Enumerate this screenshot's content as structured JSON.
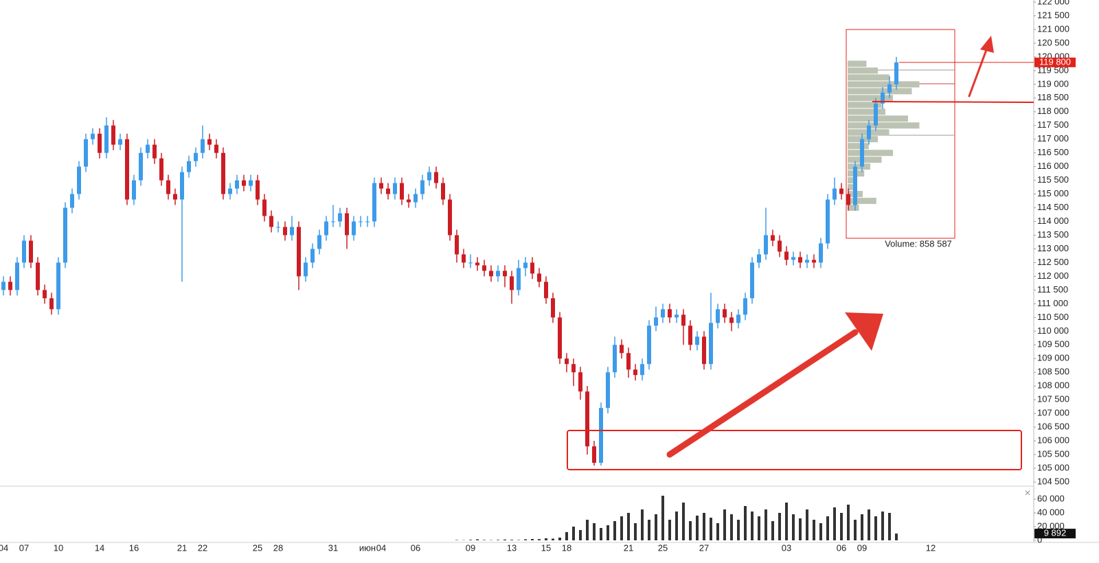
{
  "chart_data": {
    "type": "candlestick",
    "categories": [
      "04",
      null,
      null,
      "07",
      null,
      null,
      null,
      null,
      "10",
      null,
      null,
      null,
      null,
      null,
      "14",
      null,
      null,
      null,
      null,
      "16",
      null,
      null,
      null,
      null,
      null,
      null,
      "21",
      null,
      null,
      "22",
      null,
      null,
      null,
      null,
      null,
      null,
      null,
      "25",
      null,
      null,
      "28",
      null,
      null,
      null,
      null,
      null,
      null,
      null,
      "31",
      null,
      null,
      null,
      null,
      "июн",
      null,
      "04",
      null,
      null,
      null,
      null,
      "06",
      null,
      null,
      null,
      null,
      null,
      null,
      null,
      "09",
      null,
      null,
      null,
      null,
      null,
      "13",
      null,
      null,
      null,
      null,
      "15",
      null,
      null,
      "18",
      null,
      null,
      null,
      null,
      null,
      null,
      null,
      null,
      "21",
      null,
      null,
      null,
      null,
      "25",
      null,
      null,
      null,
      null,
      null,
      "27",
      null,
      null,
      null,
      null,
      null,
      null,
      null,
      null,
      null,
      null,
      null,
      "03",
      null,
      null,
      null,
      null,
      null,
      null,
      null,
      "06",
      null,
      null,
      "09",
      null,
      null,
      null,
      null,
      null,
      null,
      null,
      null,
      null,
      "12"
    ],
    "open": [
      111500,
      111800,
      111500,
      112500,
      113300,
      112500,
      111500,
      111200,
      110800,
      112500,
      114500,
      115000,
      116000,
      117000,
      117200,
      116500,
      117500,
      116800,
      117000,
      114800,
      115500,
      116500,
      116800,
      116300,
      115500,
      115000,
      114800,
      115800,
      116200,
      116500,
      117000,
      116800,
      116500,
      115000,
      115200,
      115500,
      115300,
      115500,
      114800,
      114200,
      113800,
      113800,
      113500,
      113800,
      112000,
      112500,
      113000,
      113500,
      114000,
      114000,
      114300,
      113500,
      114000,
      114000,
      114000,
      115400,
      115200,
      115000,
      115400,
      114800,
      114700,
      115000,
      115500,
      115800,
      115400,
      114800,
      113500,
      112800,
      112500,
      112500,
      112400,
      112200,
      112000,
      112200,
      112000,
      111500,
      112300,
      112500,
      112100,
      111800,
      111200,
      110500,
      109000,
      108800,
      108500,
      107800,
      105800,
      105200,
      107200,
      108500,
      109500,
      109200,
      108600,
      108400,
      108800,
      110200,
      110500,
      110800,
      110500,
      110600,
      110200,
      109500,
      109800,
      108800,
      110300,
      110800,
      110500,
      110300,
      110600,
      111200,
      112500,
      112800,
      113500,
      113300,
      112900,
      112600,
      112700,
      112500,
      112600,
      112500,
      113200,
      114800,
      115200,
      115000,
      114600,
      116000,
      117000,
      117500,
      118300,
      118700,
      119000,
      null,
      null,
      null,
      null,
      null
    ],
    "high": [
      112000,
      112000,
      112700,
      113500,
      113500,
      112700,
      111700,
      111400,
      112700,
      114700,
      115200,
      116200,
      117200,
      117400,
      117400,
      117800,
      117700,
      117200,
      117200,
      115700,
      116700,
      117000,
      117000,
      116500,
      115700,
      115200,
      116000,
      116400,
      116700,
      117500,
      117200,
      117000,
      116700,
      115400,
      115700,
      115700,
      115700,
      115700,
      115000,
      114400,
      114000,
      114000,
      114200,
      114000,
      112700,
      113200,
      113700,
      114200,
      114600,
      114500,
      114500,
      114200,
      114200,
      114200,
      115600,
      115600,
      115400,
      115600,
      115600,
      115000,
      115200,
      115700,
      116000,
      116000,
      115600,
      115000,
      113700,
      113000,
      112800,
      112700,
      112600,
      112400,
      112400,
      112400,
      112200,
      112600,
      112700,
      112700,
      112300,
      112000,
      111400,
      110700,
      109200,
      109000,
      108700,
      108000,
      106000,
      107400,
      108700,
      109800,
      109700,
      109400,
      108800,
      109000,
      110400,
      110900,
      111000,
      111000,
      110800,
      110800,
      110400,
      110000,
      110000,
      111400,
      111000,
      111000,
      110700,
      110800,
      111400,
      112700,
      113000,
      114500,
      113700,
      113500,
      113100,
      112900,
      112900,
      112800,
      112800,
      113400,
      115000,
      115600,
      115400,
      115200,
      116200,
      117200,
      117700,
      118500,
      118900,
      119300,
      120000,
      null,
      null,
      null,
      null,
      null
    ],
    "low": [
      111300,
      111300,
      111300,
      112300,
      112300,
      111300,
      111000,
      110600,
      110600,
      112300,
      114300,
      114800,
      115800,
      116800,
      116300,
      116300,
      116600,
      116600,
      114600,
      114600,
      115300,
      116300,
      116100,
      115300,
      114800,
      114600,
      111800,
      115600,
      116000,
      116300,
      116600,
      116300,
      114800,
      114800,
      115000,
      115100,
      115100,
      114600,
      114000,
      113600,
      113600,
      113300,
      113300,
      111500,
      111800,
      112300,
      112800,
      113300,
      113800,
      113800,
      113000,
      113300,
      113800,
      113800,
      113800,
      115000,
      114800,
      114800,
      114600,
      114500,
      114500,
      114800,
      115300,
      115200,
      114600,
      113300,
      112500,
      112300,
      112300,
      112200,
      112000,
      111800,
      111800,
      111600,
      111000,
      111300,
      112000,
      111900,
      111600,
      111000,
      110300,
      108800,
      108500,
      108000,
      107500,
      105500,
      105100,
      105100,
      107000,
      108300,
      109000,
      108300,
      108200,
      108200,
      108600,
      110000,
      110300,
      110300,
      110300,
      109500,
      109300,
      109300,
      108600,
      108600,
      110100,
      110300,
      110000,
      110100,
      110400,
      111000,
      112300,
      112600,
      113100,
      112700,
      112400,
      112400,
      112300,
      112300,
      112300,
      112300,
      113000,
      114600,
      114800,
      114400,
      114400,
      115800,
      116800,
      117300,
      118100,
      118500,
      118800,
      null,
      null,
      null,
      null,
      null
    ],
    "close": [
      111800,
      111500,
      112500,
      113300,
      112500,
      111500,
      111200,
      110800,
      112500,
      114500,
      115000,
      116000,
      117000,
      117200,
      116500,
      117500,
      116800,
      117000,
      114800,
      115500,
      116500,
      116800,
      116300,
      115500,
      115000,
      114800,
      115800,
      116200,
      116500,
      117000,
      116800,
      116500,
      115000,
      115200,
      115500,
      115300,
      115500,
      114800,
      114200,
      113800,
      113800,
      113500,
      113800,
      112000,
      112500,
      113000,
      113500,
      114000,
      114000,
      114300,
      113500,
      114000,
      114000,
      114000,
      115400,
      115200,
      115000,
      115400,
      114800,
      114700,
      115000,
      115500,
      115800,
      115400,
      114800,
      113500,
      112800,
      112500,
      112500,
      112400,
      112200,
      112000,
      112200,
      112000,
      111500,
      112300,
      112500,
      112100,
      111800,
      111200,
      110500,
      109000,
      108800,
      108500,
      107800,
      105800,
      105200,
      107200,
      108500,
      109500,
      109200,
      108600,
      108400,
      108800,
      110200,
      110500,
      110800,
      110500,
      110600,
      110200,
      109500,
      109800,
      108800,
      110300,
      110800,
      110500,
      110300,
      110600,
      111200,
      112500,
      112800,
      113500,
      113300,
      112900,
      112600,
      112700,
      112500,
      112600,
      112500,
      113200,
      114800,
      115200,
      115000,
      114600,
      116000,
      117000,
      117500,
      118300,
      118700,
      119000,
      119800,
      null,
      null,
      null,
      null,
      null
    ],
    "volume": [
      0,
      0,
      0,
      0,
      0,
      0,
      0,
      0,
      0,
      0,
      0,
      0,
      0,
      0,
      0,
      0,
      0,
      0,
      0,
      0,
      0,
      0,
      0,
      0,
      0,
      0,
      0,
      0,
      0,
      0,
      0,
      0,
      0,
      0,
      0,
      0,
      0,
      0,
      0,
      0,
      0,
      0,
      0,
      0,
      0,
      0,
      0,
      0,
      0,
      0,
      0,
      0,
      0,
      0,
      0,
      0,
      0,
      0,
      0,
      0,
      0,
      0,
      0,
      0,
      0,
      0,
      500,
      300,
      800,
      1500,
      600,
      400,
      700,
      1200,
      900,
      500,
      1500,
      2000,
      1800,
      3000,
      2500,
      4000,
      12000,
      20000,
      15000,
      30000,
      25000,
      18000,
      22000,
      28000,
      35000,
      40000,
      25000,
      45000,
      30000,
      38000,
      65000,
      30000,
      42000,
      55000,
      28000,
      36000,
      40000,
      33000,
      25000,
      45000,
      38000,
      30000,
      50000,
      42000,
      35000,
      45000,
      28000,
      40000,
      55000,
      38000,
      32000,
      45000,
      30000,
      25000,
      35000,
      48000,
      40000,
      52000,
      30000,
      38000,
      45000,
      35000,
      42000,
      40000,
      9892,
      null,
      null,
      null,
      null,
      null
    ],
    "up_color": "#3d9be9",
    "down_color": "#cc1d24",
    "volume_color": "#333333",
    "ylim": [
      104350,
      122075
    ],
    "yticks": [
      {
        "value": 104500,
        "label": "104 500"
      },
      {
        "value": 105000,
        "label": "105 000"
      },
      {
        "value": 105500,
        "label": "105 500"
      },
      {
        "value": 106000,
        "label": "106 000"
      },
      {
        "value": 106500,
        "label": "106 500"
      },
      {
        "value": 107000,
        "label": "107 000"
      },
      {
        "value": 107500,
        "label": "107 500"
      },
      {
        "value": 108000,
        "label": "108 000"
      },
      {
        "value": 108500,
        "label": "108 500"
      },
      {
        "value": 109000,
        "label": "109 000"
      },
      {
        "value": 109500,
        "label": "109 500"
      },
      {
        "value": 110000,
        "label": "110 000"
      },
      {
        "value": 110500,
        "label": "110 500"
      },
      {
        "value": 111000,
        "label": "111 000"
      },
      {
        "value": 111500,
        "label": "111 500"
      },
      {
        "value": 112000,
        "label": "112 000"
      },
      {
        "value": 112500,
        "label": "112 500"
      },
      {
        "value": 113000,
        "label": "113 000"
      },
      {
        "value": 113500,
        "label": "113 500"
      },
      {
        "value": 114000,
        "label": "114 000"
      },
      {
        "value": 114500,
        "label": "114 500"
      },
      {
        "value": 115000,
        "label": "115 000"
      },
      {
        "value": 115500,
        "label": "115 500"
      },
      {
        "value": 116000,
        "label": "116 000"
      },
      {
        "value": 116500,
        "label": "116 500"
      },
      {
        "value": 117000,
        "label": "117 000"
      },
      {
        "value": 117500,
        "label": "117 500"
      },
      {
        "value": 118000,
        "label": "118 000"
      },
      {
        "value": 118500,
        "label": "118 500"
      },
      {
        "value": 119000,
        "label": "119 000"
      },
      {
        "value": 119500,
        "label": "119 500"
      },
      {
        "value": 120000,
        "label": "120 000"
      },
      {
        "value": 120500,
        "label": "120 500"
      },
      {
        "value": 121000,
        "label": "121 000"
      },
      {
        "value": 121500,
        "label": "121 500"
      },
      {
        "value": 122000,
        "label": "122 000"
      }
    ],
    "volume_ylim": [
      0,
      77000
    ],
    "volume_yticks": [
      0,
      {
        "value": 20000,
        "label": "20 000"
      },
      {
        "value": 40000,
        "label": "40 000"
      },
      {
        "value": 60000,
        "label": "60 000"
      }
    ],
    "grid": false,
    "last_price_label": "119 800",
    "last_volume_label": "9 892",
    "volume_profile": {
      "title": "Volume: 858 587",
      "color": "#bcc3b3",
      "prices": [
        114500,
        114750,
        115000,
        115250,
        115500,
        115750,
        116000,
        116250,
        116500,
        116750,
        117000,
        117250,
        117500,
        117750,
        118000,
        118250,
        118500,
        118750,
        119000,
        119250,
        119500,
        119750
      ],
      "values": [
        15000,
        38000,
        20000,
        10000,
        12000,
        22000,
        30000,
        45000,
        60000,
        28000,
        40000,
        55000,
        95000,
        80000,
        50000,
        45000,
        60000,
        85000,
        95000,
        55000,
        40000,
        25000
      ]
    }
  }
}
